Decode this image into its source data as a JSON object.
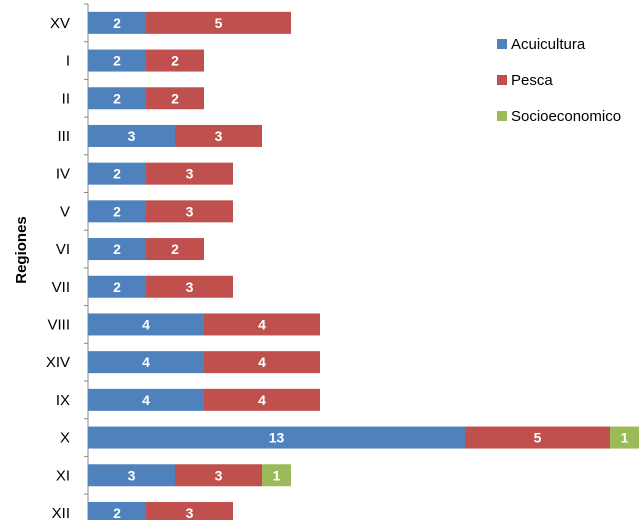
{
  "chart_data": {
    "type": "bar",
    "orientation": "horizontal",
    "stacked": true,
    "title": "",
    "xlabel": "",
    "ylabel": "Regiones",
    "categories": [
      "XV",
      "I",
      "II",
      "III",
      "IV",
      "V",
      "VI",
      "VII",
      "VIII",
      "XIV",
      "IX",
      "X",
      "XI",
      "XII"
    ],
    "series": [
      {
        "name": "Acuicultura",
        "color": "#4f81bd",
        "values": [
          2,
          2,
          2,
          3,
          2,
          2,
          2,
          2,
          4,
          4,
          4,
          13,
          3,
          2
        ]
      },
      {
        "name": "Pesca",
        "color": "#c0504d",
        "values": [
          5,
          2,
          2,
          3,
          3,
          3,
          2,
          3,
          4,
          4,
          4,
          5,
          3,
          3
        ]
      },
      {
        "name": "Socioeconomico",
        "color": "#9bbb59",
        "values": [
          0,
          0,
          0,
          0,
          0,
          0,
          0,
          0,
          0,
          0,
          0,
          1,
          1,
          0
        ]
      }
    ],
    "xlim": [
      0,
      19
    ],
    "grid": false,
    "legend_position": "top-right"
  }
}
